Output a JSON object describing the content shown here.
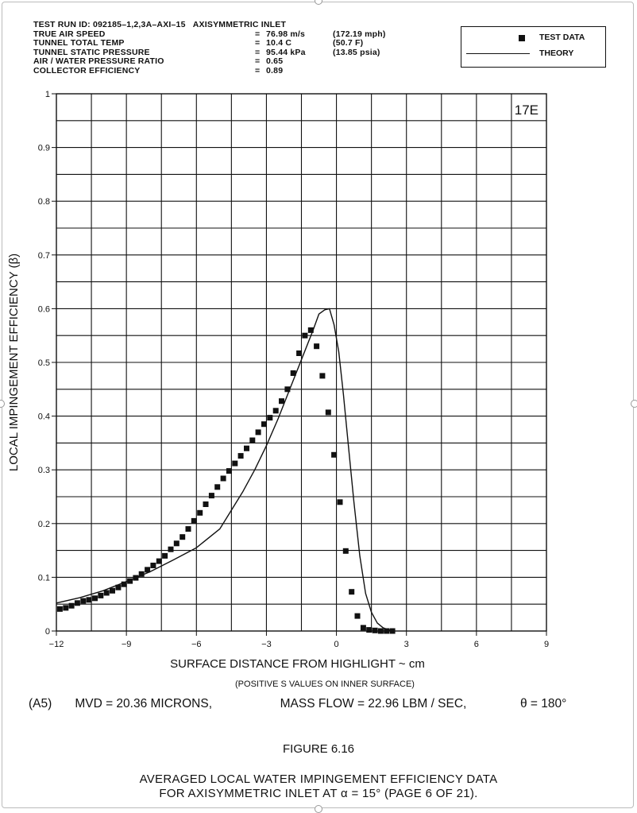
{
  "header": {
    "run_label": "TEST RUN ID:",
    "run_id": "092185–1,2,3A–AXI–15",
    "config": "AXISYMMETRIC INLET",
    "params": [
      {
        "label": "TRUE AIR SPEED",
        "eq": "=",
        "value": "76.98 m/s",
        "alt": "(172.19 mph)"
      },
      {
        "label": "TUNNEL TOTAL TEMP",
        "eq": "=",
        "value": "10.4 C",
        "alt": "(50.7 F)"
      },
      {
        "label": "TUNNEL STATIC PRESSURE",
        "eq": "=",
        "value": "95.44 kPa",
        "alt": "(13.85 psia)"
      },
      {
        "label": "AIR / WATER PRESSURE RATIO",
        "eq": "=",
        "value": "0.65",
        "alt": ""
      },
      {
        "label": "COLLECTOR EFFICIENCY",
        "eq": "=",
        "value": "0.89",
        "alt": ""
      }
    ]
  },
  "legend": {
    "test_data": "TEST DATA",
    "theory": "THEORY"
  },
  "chart_data": {
    "type": "scatter",
    "panel_tag": "17E",
    "xlabel": "SURFACE DISTANCE FROM HIGHLIGHT ~ cm",
    "ylabel": "LOCAL IMPINGEMENT EFFICIENCY (β)",
    "xlim": [
      -12,
      9
    ],
    "ylim": [
      0,
      1
    ],
    "x_ticks": [
      -12,
      -9,
      -6,
      -3,
      0,
      3,
      6,
      9
    ],
    "x_tick_labels": [
      "−12",
      "−9",
      "−6",
      "−3",
      "0",
      "3",
      "6",
      "9"
    ],
    "y_ticks": [
      0,
      0.1,
      0.2,
      0.3,
      0.4,
      0.5,
      0.6,
      0.7,
      0.8,
      0.9,
      1
    ],
    "y_tick_labels": [
      "0",
      "0.1",
      "0.2",
      "0.3",
      "0.4",
      "0.5",
      "0.6",
      "0.7",
      "0.8",
      "0.9",
      "1"
    ],
    "grid": true,
    "legend_position": "top-right",
    "series": [
      {
        "name": "TEST DATA",
        "kind": "markers",
        "x": [
          -11.85,
          -11.6,
          -11.35,
          -11.1,
          -10.85,
          -10.6,
          -10.35,
          -10.1,
          -9.85,
          -9.6,
          -9.35,
          -9.1,
          -8.85,
          -8.6,
          -8.35,
          -8.1,
          -7.85,
          -7.6,
          -7.35,
          -7.1,
          -6.85,
          -6.6,
          -6.35,
          -6.1,
          -5.85,
          -5.6,
          -5.35,
          -5.1,
          -4.85,
          -4.6,
          -4.35,
          -4.1,
          -3.85,
          -3.6,
          -3.35,
          -3.1,
          -2.85,
          -2.6,
          -2.35,
          -2.1,
          -1.85,
          -1.6,
          -1.35,
          -1.1,
          -0.85,
          -0.6,
          -0.35,
          -0.1,
          0.15,
          0.4,
          0.65,
          0.9,
          1.15,
          1.4,
          1.65,
          1.9,
          2.15,
          2.4
        ],
        "y": [
          0.041,
          0.043,
          0.047,
          0.052,
          0.056,
          0.058,
          0.061,
          0.066,
          0.071,
          0.075,
          0.081,
          0.087,
          0.093,
          0.099,
          0.106,
          0.114,
          0.122,
          0.13,
          0.14,
          0.152,
          0.163,
          0.175,
          0.19,
          0.205,
          0.22,
          0.236,
          0.252,
          0.268,
          0.284,
          0.298,
          0.312,
          0.326,
          0.34,
          0.355,
          0.37,
          0.385,
          0.397,
          0.41,
          0.428,
          0.45,
          0.48,
          0.517,
          0.55,
          0.56,
          0.53,
          0.475,
          0.407,
          0.328,
          0.24,
          0.149,
          0.073,
          0.028,
          0.006,
          0.002,
          0.001,
          0.0,
          0.0,
          0.0
        ]
      },
      {
        "name": "THEORY",
        "kind": "line",
        "x": [
          -12,
          -11,
          -10,
          -9,
          -8,
          -7,
          -6,
          -5,
          -4.5,
          -4,
          -3.5,
          -3,
          -2.5,
          -2,
          -1.5,
          -1,
          -0.75,
          -0.5,
          -0.3,
          -0.1,
          0.1,
          0.3,
          0.5,
          0.75,
          1,
          1.25,
          1.5,
          1.75,
          2,
          2.25,
          2.5
        ],
        "y": [
          0.052,
          0.062,
          0.075,
          0.092,
          0.11,
          0.132,
          0.155,
          0.19,
          0.225,
          0.26,
          0.3,
          0.345,
          0.395,
          0.45,
          0.505,
          0.56,
          0.59,
          0.598,
          0.6,
          0.57,
          0.52,
          0.44,
          0.35,
          0.24,
          0.14,
          0.07,
          0.035,
          0.015,
          0.006,
          0.002,
          0.0
        ]
      }
    ]
  },
  "footer": {
    "note": "(POSITIVE S VALUES ON INNER SURFACE)",
    "case_id": "(A5)",
    "mvd": "MVD = 20.36 MICRONS,",
    "mass_flow": "MASS FLOW = 22.96 LBM / SEC,",
    "theta": "θ  =  180°",
    "figure": "FIGURE 6.16",
    "title_line1": "AVERAGED LOCAL WATER IMPINGEMENT EFFICIENCY DATA",
    "title_line2": "FOR AXISYMMETRIC INLET AT α = 15° (PAGE 6 OF 21)."
  }
}
